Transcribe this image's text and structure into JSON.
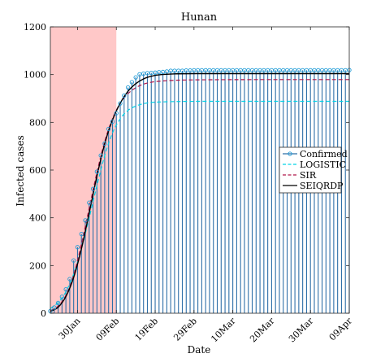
{
  "chart_data": {
    "type": "stem",
    "title": "Hunan",
    "xlabel": "Date",
    "ylabel": "Infected cases",
    "ylim": [
      0,
      1200
    ],
    "xlim": [
      "2020-01-23",
      "2020-04-09"
    ],
    "yticks": [
      0,
      200,
      400,
      600,
      800,
      1000,
      1200
    ],
    "xticks": [
      {
        "date": "2020-01-30",
        "label": "30Jan"
      },
      {
        "date": "2020-02-09",
        "label": "09Feb"
      },
      {
        "date": "2020-02-19",
        "label": "19Feb"
      },
      {
        "date": "2020-02-29",
        "label": "29Feb"
      },
      {
        "date": "2020-03-10",
        "label": "10Mar"
      },
      {
        "date": "2020-03-20",
        "label": "20Mar"
      },
      {
        "date": "2020-03-30",
        "label": "30Mar"
      },
      {
        "date": "2020-04-09",
        "label": "09Apr"
      }
    ],
    "shaded_region": {
      "from": "2020-01-23",
      "to": "2020-02-09",
      "color": "#ffc8c8"
    },
    "grid": false,
    "legend_position": "right",
    "series": [
      {
        "name": "Confirmed",
        "style": "stem",
        "color": "#2e6fa8",
        "start_date": "2020-01-23",
        "values": [
          9,
          24,
          43,
          69,
          100,
          143,
          221,
          277,
          332,
          389,
          463,
          521,
          593,
          661,
          711,
          772,
          803,
          838,
          879,
          912,
          946,
          968,
          988,
          1001,
          1004,
          1006,
          1007,
          1008,
          1010,
          1011,
          1013,
          1016,
          1016,
          1016,
          1016,
          1017,
          1017,
          1018,
          1018,
          1018,
          1018,
          1018,
          1018,
          1018,
          1018,
          1018,
          1018,
          1018,
          1018,
          1018,
          1018,
          1018,
          1018,
          1018,
          1018,
          1018,
          1018,
          1018,
          1018,
          1018,
          1018,
          1018,
          1018,
          1018,
          1018,
          1018,
          1018,
          1018,
          1018,
          1018,
          1018,
          1018,
          1018,
          1018,
          1018,
          1018,
          1018,
          1019
        ]
      },
      {
        "name": "LOGISTIC",
        "style": "dashed",
        "color": "#00d4e8",
        "x": [
          "2020-01-23",
          "2020-01-25",
          "2020-01-27",
          "2020-01-29",
          "2020-01-31",
          "2020-02-02",
          "2020-02-04",
          "2020-02-06",
          "2020-02-08",
          "2020-02-10",
          "2020-02-12",
          "2020-02-14",
          "2020-02-16",
          "2020-02-18",
          "2020-02-20",
          "2020-02-24",
          "2020-03-01",
          "2020-03-15",
          "2020-04-09"
        ],
        "values": [
          20,
          45,
          90,
          165,
          270,
          400,
          535,
          660,
          755,
          815,
          850,
          868,
          878,
          883,
          885,
          887,
          888,
          888,
          888
        ]
      },
      {
        "name": "SIR",
        "style": "dashed",
        "color": "#b0174a",
        "x": [
          "2020-01-23",
          "2020-01-25",
          "2020-01-27",
          "2020-01-29",
          "2020-01-31",
          "2020-02-02",
          "2020-02-04",
          "2020-02-06",
          "2020-02-08",
          "2020-02-10",
          "2020-02-12",
          "2020-02-14",
          "2020-02-16",
          "2020-02-18",
          "2020-02-20",
          "2020-02-24",
          "2020-03-01",
          "2020-03-15",
          "2020-04-09"
        ],
        "values": [
          10,
          30,
          75,
          160,
          290,
          440,
          590,
          720,
          815,
          880,
          920,
          945,
          960,
          968,
          972,
          976,
          978,
          979,
          979
        ]
      },
      {
        "name": "SEIQRDP",
        "style": "solid",
        "color": "#000000",
        "x": [
          "2020-01-23",
          "2020-01-25",
          "2020-01-27",
          "2020-01-29",
          "2020-01-31",
          "2020-02-02",
          "2020-02-04",
          "2020-02-06",
          "2020-02-08",
          "2020-02-10",
          "2020-02-12",
          "2020-02-14",
          "2020-02-16",
          "2020-02-18",
          "2020-02-20",
          "2020-02-24",
          "2020-03-01",
          "2020-03-15",
          "2020-04-09"
        ],
        "values": [
          8,
          25,
          70,
          150,
          270,
          420,
          575,
          710,
          810,
          880,
          930,
          962,
          982,
          993,
          999,
          1003,
          1004,
          1004,
          1004
        ]
      }
    ]
  }
}
